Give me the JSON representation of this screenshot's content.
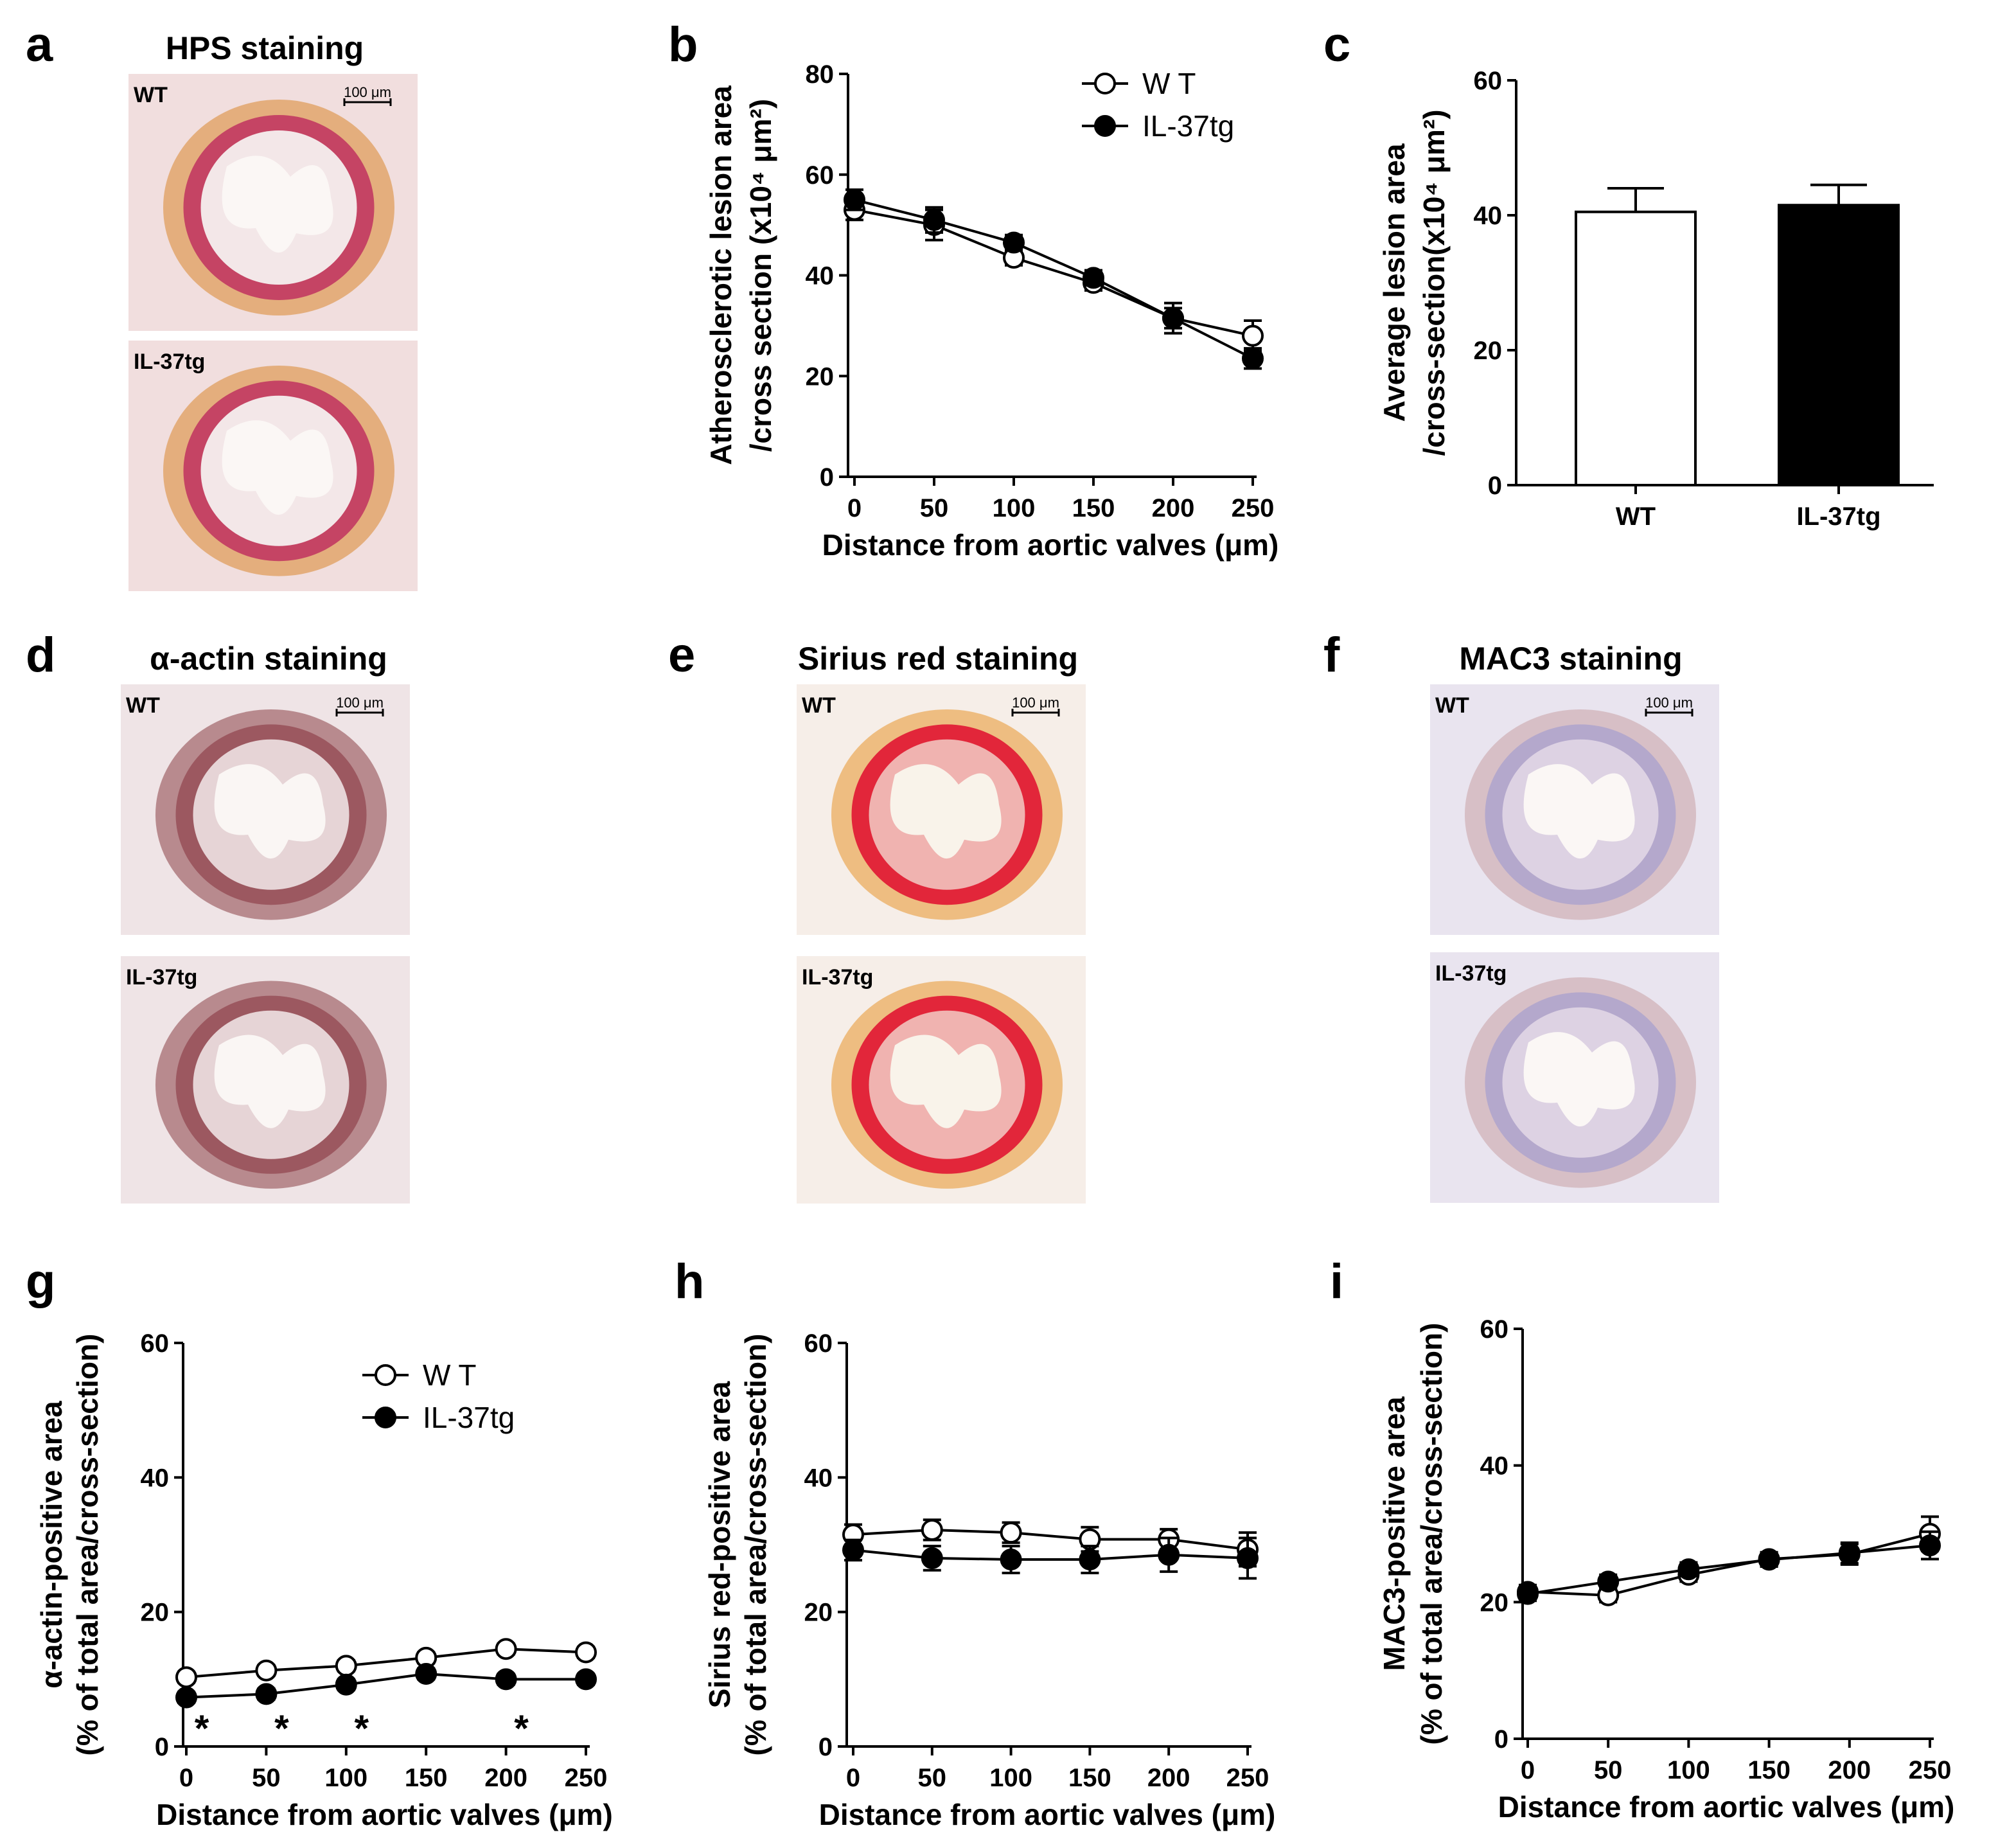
{
  "panels": {
    "a": {
      "letter": "a",
      "title": "HPS staining",
      "top_label": "WT",
      "bottom_label": "IL-37tg",
      "scale": "100 μm",
      "colors": {
        "bg": "#f1dede",
        "tissue": "#c54464",
        "inner": "#f3e7e8",
        "lumen": "#fbf7f5",
        "accent": "#d9862e"
      }
    },
    "b": {
      "letter": "b"
    },
    "c": {
      "letter": "c"
    },
    "d": {
      "letter": "d",
      "title": "α-actin staining",
      "top_label": "WT",
      "bottom_label": "IL-37tg",
      "scale": "100 μm",
      "colors": {
        "bg": "#efe4e6",
        "tissue": "#9c5860",
        "inner": "#e6d4d6",
        "lumen": "#faf6f4",
        "accent": "#8a3f46"
      }
    },
    "e": {
      "letter": "e",
      "title": "Sirius red staining",
      "top_label": "WT",
      "bottom_label": "IL-37tg",
      "scale": "100 μm",
      "colors": {
        "bg": "#f6eee8",
        "tissue": "#e2263a",
        "inner": "#f0b3b0",
        "lumen": "#f9f3ea",
        "accent": "#e8952c"
      }
    },
    "f": {
      "letter": "f",
      "title": "MAC3 staining",
      "top_label": "WT",
      "bottom_label": "IL-37tg",
      "scale": "100 μm",
      "colors": {
        "bg": "#e9e4ef",
        "tissue": "#b4a8cc",
        "inner": "#ddd2e3",
        "lumen": "#fbf7f5",
        "accent": "#c9a0a4"
      }
    },
    "g": {
      "letter": "g"
    },
    "h": {
      "letter": "h"
    },
    "i": {
      "letter": "i"
    }
  },
  "chart_data": [
    {
      "id": "b",
      "type": "line",
      "title": "",
      "xlabel": "Distance from aortic valves (μm)",
      "ylabel_line1": "Atherosclerotic lesion area",
      "ylabel_line2": "/cross section  (x10⁴ μm²)",
      "x": [
        0,
        50,
        100,
        150,
        200,
        250
      ],
      "xticks": [
        "0",
        "50",
        "100",
        "150",
        "200",
        "250"
      ],
      "yticks": [
        "0",
        "20",
        "40",
        "60",
        "80"
      ],
      "ylim": [
        0,
        80
      ],
      "series": [
        {
          "name": "W T",
          "marker": "open",
          "values": [
            53,
            50,
            43.5,
            38.5,
            31.5,
            28
          ],
          "errors": [
            2,
            3,
            1.5,
            1.5,
            3,
            3
          ]
        },
        {
          "name": "IL-37tg",
          "marker": "filled",
          "values": [
            55,
            51,
            46.5,
            39.5,
            31.5,
            23.5
          ],
          "errors": [
            2,
            2.5,
            1.5,
            1.5,
            2,
            2
          ]
        }
      ],
      "legend": "top-right"
    },
    {
      "id": "c",
      "type": "bar",
      "title": "",
      "xlabel": "",
      "ylabel_line1": "Average lesion area",
      "ylabel_line2": "/cross-section(x10⁴ μm²)",
      "categories": [
        "WT",
        "IL-37tg"
      ],
      "values": [
        40.5,
        41.5
      ],
      "errors": [
        3.5,
        3
      ],
      "fills": [
        "#ffffff",
        "#000000"
      ],
      "yticks": [
        "0",
        "20",
        "40",
        "60"
      ],
      "ylim": [
        0,
        60
      ]
    },
    {
      "id": "g",
      "type": "line",
      "title": "",
      "xlabel": "Distance from aortic valves (μm)",
      "ylabel_line1": "α-actin-positive area",
      "ylabel_line2": "(% of total area/cross-section)",
      "x": [
        0,
        50,
        100,
        150,
        200,
        250
      ],
      "xticks": [
        "0",
        "50",
        "100",
        "150",
        "200",
        "250"
      ],
      "yticks": [
        "0",
        "20",
        "40",
        "60"
      ],
      "ylim": [
        0,
        60
      ],
      "series": [
        {
          "name": "W T",
          "marker": "open",
          "values": [
            10.3,
            11.3,
            12,
            13.2,
            14.5,
            14
          ],
          "errors": [
            0.8,
            0.8,
            0.8,
            0.8,
            0.8,
            0.8
          ]
        },
        {
          "name": "IL-37tg",
          "marker": "filled",
          "values": [
            7.3,
            7.8,
            9.2,
            10.8,
            10,
            10
          ],
          "errors": [
            0.8,
            0.8,
            0.8,
            0.8,
            0.8,
            0.8
          ]
        }
      ],
      "annotations": [
        {
          "x": 0,
          "text": "*"
        },
        {
          "x": 50,
          "text": "*"
        },
        {
          "x": 100,
          "text": "*"
        },
        {
          "x": 200,
          "text": "*"
        }
      ],
      "legend": "top-center"
    },
    {
      "id": "h",
      "type": "line",
      "title": "",
      "xlabel": "Distance from aortic valves (μm)",
      "ylabel_line1": "Sirius red-positive area",
      "ylabel_line2": "(% of total area/cross-section)",
      "x": [
        0,
        50,
        100,
        150,
        200,
        250
      ],
      "xticks": [
        "0",
        "50",
        "100",
        "150",
        "200",
        "250"
      ],
      "yticks": [
        "0",
        "20",
        "40",
        "60"
      ],
      "ylim": [
        0,
        60
      ],
      "series": [
        {
          "name": "WT",
          "marker": "open",
          "values": [
            31.5,
            32.2,
            31.8,
            30.8,
            30.8,
            29.3
          ],
          "errors": [
            1.5,
            1.5,
            1.5,
            1.8,
            1.5,
            2.5
          ]
        },
        {
          "name": "IL-37tg",
          "marker": "filled",
          "values": [
            29.2,
            28,
            27.8,
            27.8,
            28.5,
            28
          ],
          "errors": [
            1.5,
            1.8,
            2,
            2,
            2.5,
            3
          ]
        }
      ],
      "legend": "none"
    },
    {
      "id": "i",
      "type": "line",
      "title": "",
      "xlabel": "Distance from aortic valves (μm)",
      "ylabel_line1": "MAC3-positive area",
      "ylabel_line2": "(% of total area/cross-section)",
      "x": [
        0,
        50,
        100,
        150,
        200,
        250
      ],
      "xticks": [
        "0",
        "50",
        "100",
        "150",
        "200",
        "250"
      ],
      "yticks": [
        "0",
        "20",
        "40",
        "60"
      ],
      "ylim": [
        0,
        60
      ],
      "series": [
        {
          "name": "WT",
          "marker": "open",
          "values": [
            21.5,
            21,
            24,
            26.3,
            27,
            30
          ],
          "errors": [
            1,
            1,
            1,
            1,
            1.5,
            2.5
          ]
        },
        {
          "name": "IL-37tg",
          "marker": "filled",
          "values": [
            21.2,
            23,
            24.8,
            26.2,
            27.2,
            28.3
          ],
          "errors": [
            1,
            1,
            1,
            1,
            1.5,
            2
          ]
        }
      ],
      "legend": "none"
    }
  ]
}
